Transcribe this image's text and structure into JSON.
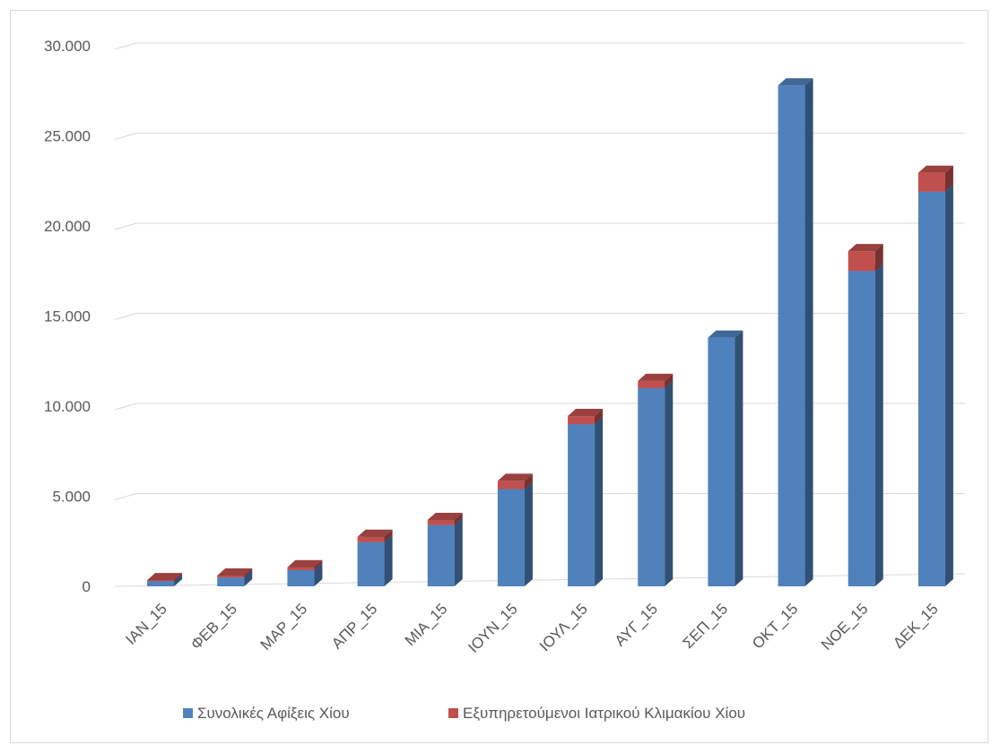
{
  "chart_data": {
    "type": "bar",
    "stacked": true,
    "style": "3d-column",
    "categories": [
      "IAN_15",
      "ΦΕΒ_15",
      "ΜΑΡ_15",
      "ΑΠΡ_15",
      "ΜΙΑ_15",
      "ΙΟΥΝ_15",
      "ΙΟΥΛ_15",
      "ΑΥΓ_15",
      "ΣΕΠ_15",
      "ΟΚΤ_15",
      "ΝΟΕ_15",
      "ΔΕΚ_15"
    ],
    "series": [
      {
        "name": "Συνολικές Αφίξεις Χίου",
        "color": "#4f81bd",
        "values": [
          280,
          490,
          900,
          2450,
          3400,
          5400,
          9000,
          11000,
          13800,
          27800,
          17500,
          21900
        ]
      },
      {
        "name": "Εξυπηρετούμενοι Ιατρικού Κλιμακίου Χίου",
        "color": "#c0504d",
        "values": [
          60,
          110,
          160,
          300,
          280,
          450,
          450,
          400,
          0,
          0,
          1100,
          1050
        ]
      }
    ],
    "yticks": [
      "0",
      "5.000",
      "10.000",
      "15.000",
      "20.000",
      "25.000",
      "30.000"
    ],
    "ylim": [
      0,
      30000
    ],
    "grid": true,
    "legend_position": "bottom",
    "title": "",
    "xlabel": "",
    "ylabel": ""
  }
}
